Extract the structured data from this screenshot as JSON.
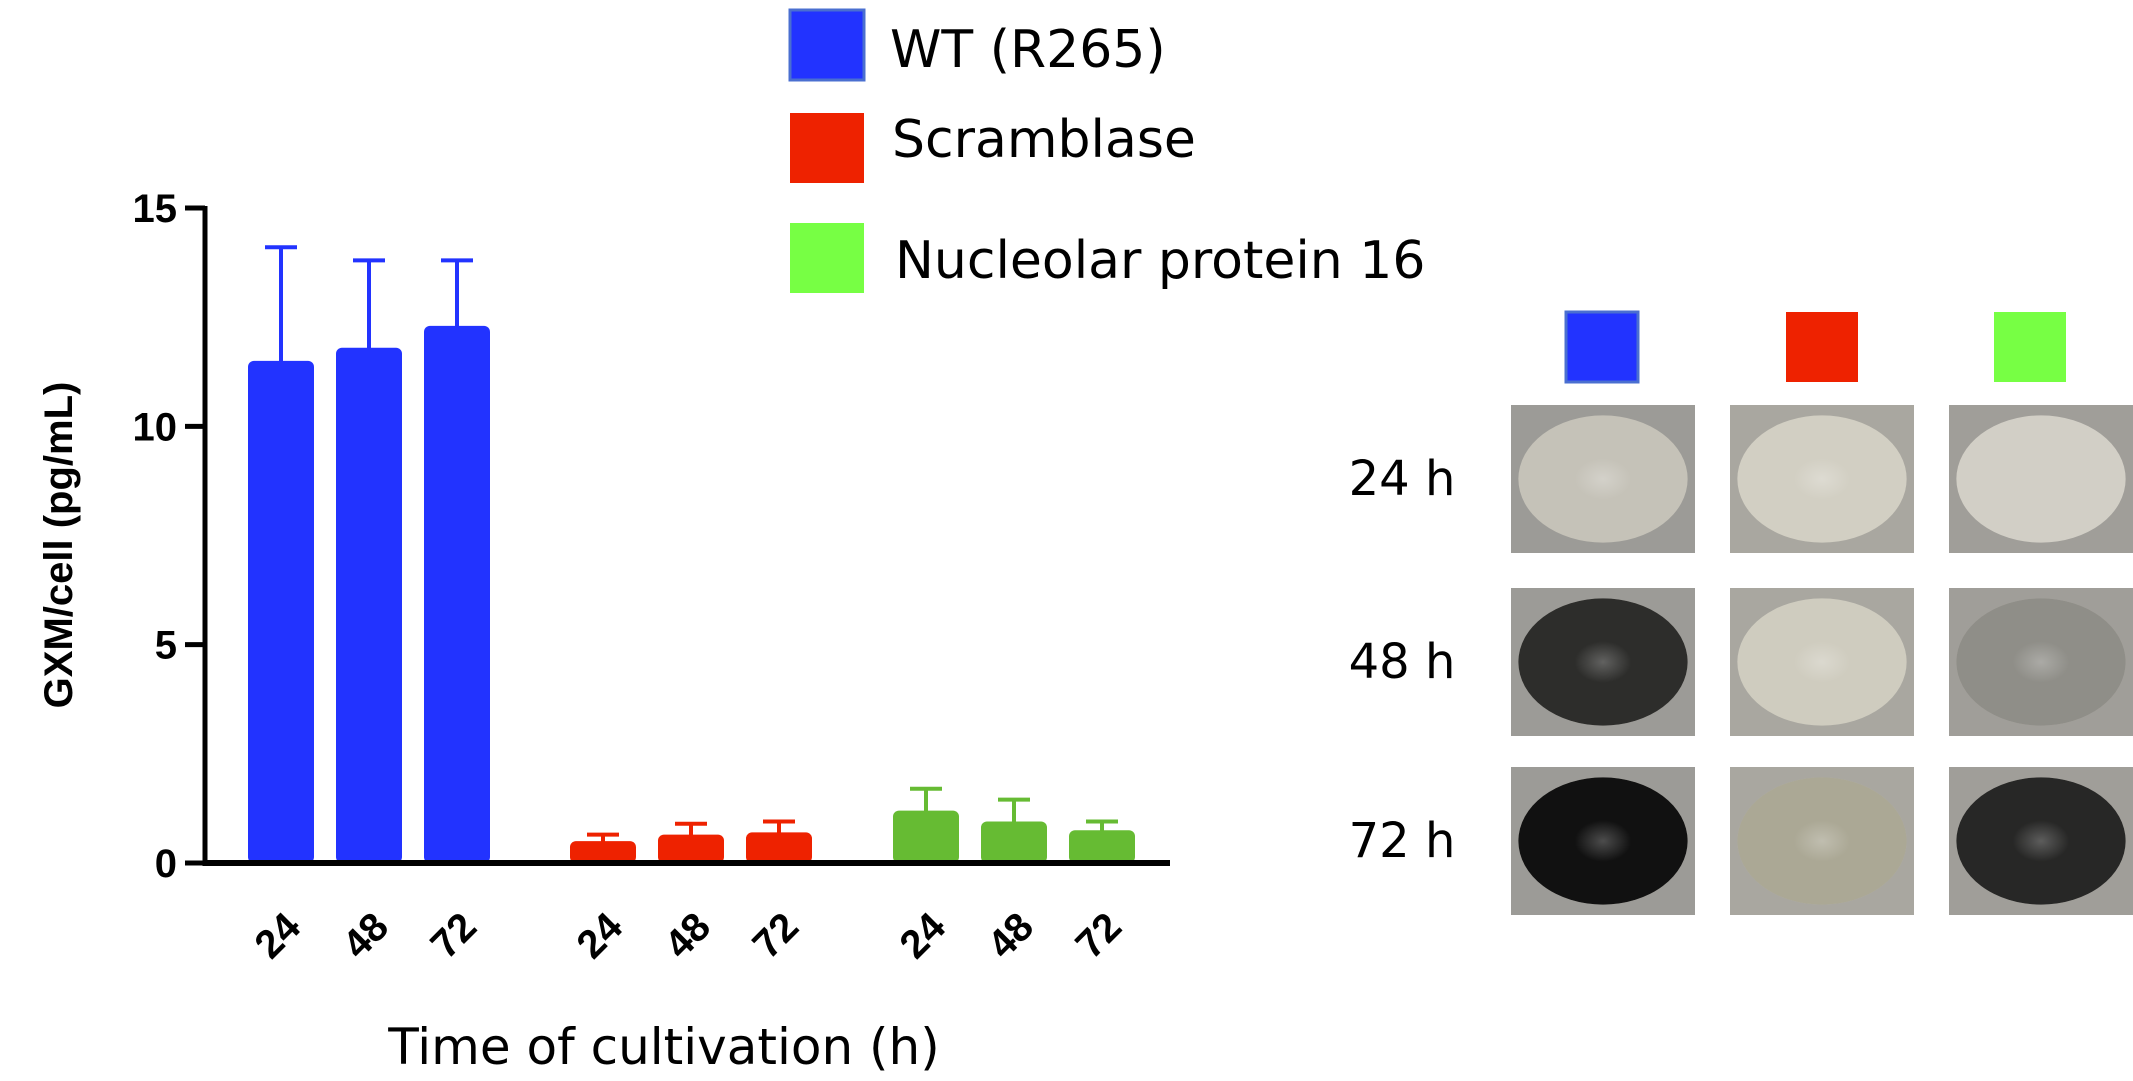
{
  "chart_data": {
    "type": "bar",
    "title": "",
    "ylabel": "GXM/cell (pg/mL)",
    "xlabel": "Time of cultivation (h)",
    "ylim": [
      0,
      15
    ],
    "yticks": [
      "0",
      "5",
      "10",
      "15"
    ],
    "categories": [
      "24",
      "48",
      "72"
    ],
    "legend_position": "top",
    "series": [
      {
        "name": "WT (R265)",
        "color": "#2233ff",
        "values": [
          11.5,
          11.8,
          12.3
        ],
        "errors": [
          2.6,
          2.0,
          1.5
        ]
      },
      {
        "name": "Scramblase",
        "color": "#ee2200",
        "values": [
          0.5,
          0.65,
          0.7
        ],
        "errors": [
          0.15,
          0.25,
          0.25
        ]
      },
      {
        "name": "Nucleolar protein 16",
        "color": "#66bb33",
        "legend_color": "#77ff44",
        "values": [
          1.2,
          0.95,
          0.75
        ],
        "errors": [
          0.5,
          0.5,
          0.2
        ]
      }
    ]
  },
  "panel": {
    "rows": [
      "24 h",
      "48 h",
      "72 h"
    ],
    "colors": [
      "#2233ff",
      "#ee2200",
      "#77ff44"
    ],
    "spots": [
      [
        0.05,
        0.02,
        0.0
      ],
      [
        0.85,
        0.05,
        0.35
      ],
      [
        1.0,
        0.4,
        0.9
      ]
    ]
  }
}
